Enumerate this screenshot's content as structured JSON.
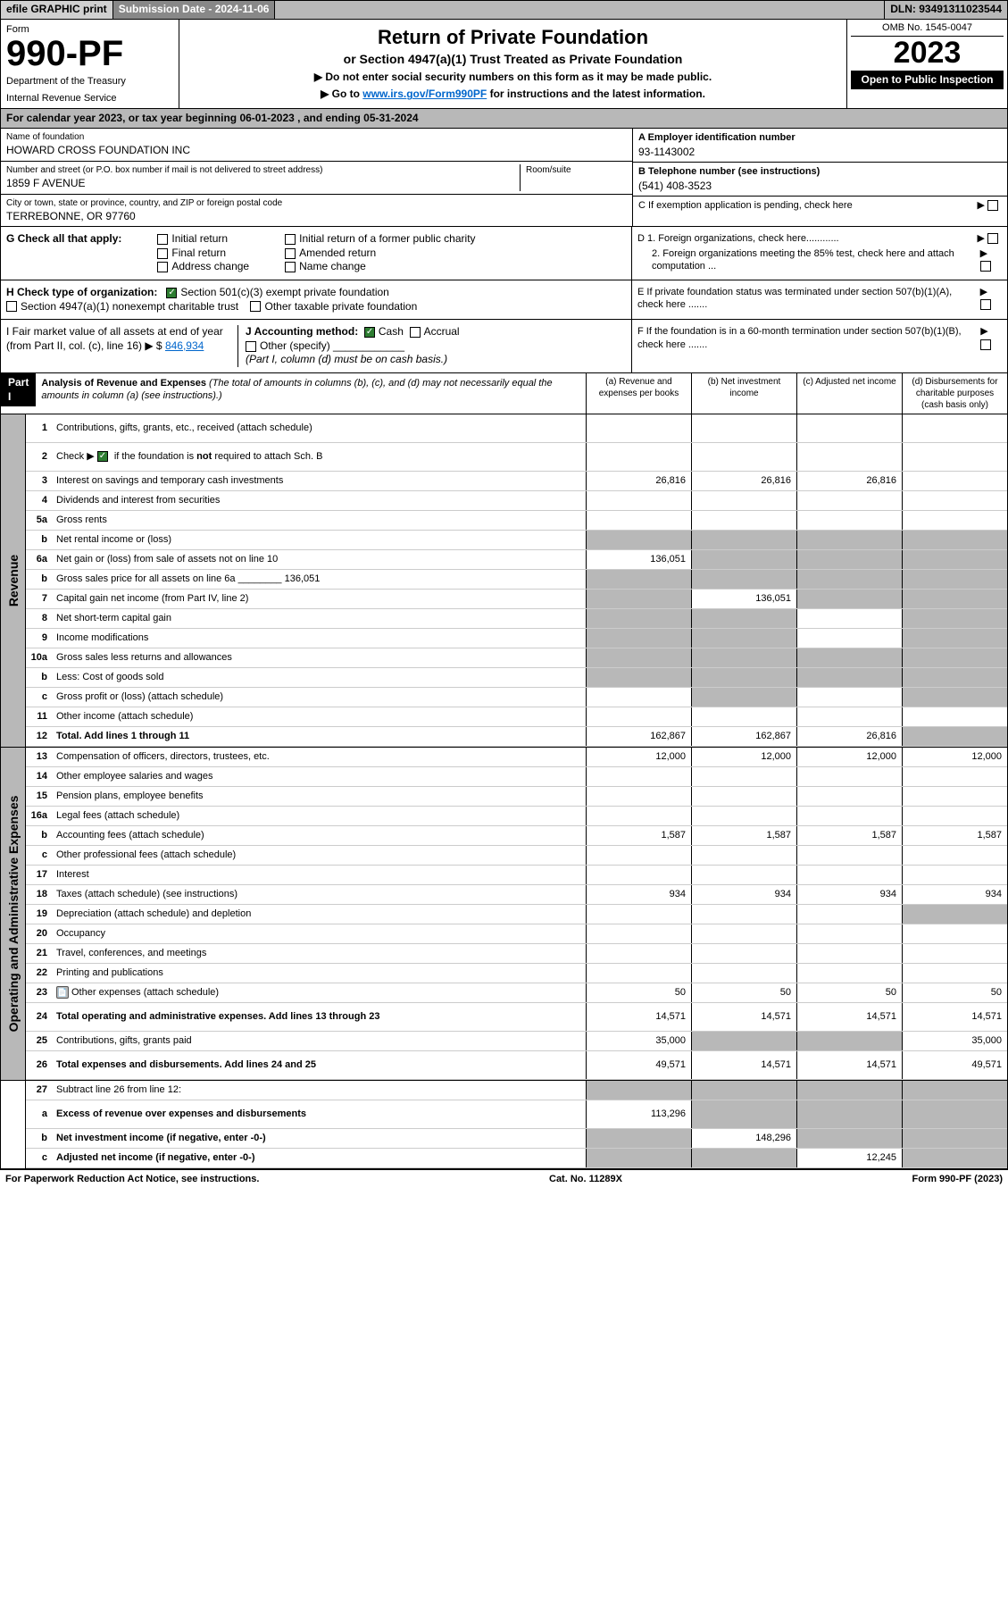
{
  "topbar": {
    "efile": "efile GRAPHIC print",
    "submission": "Submission Date - 2024-11-06",
    "dln": "DLN: 93491311023544"
  },
  "header": {
    "form_label": "Form",
    "form_number": "990-PF",
    "dept": "Department of the Treasury",
    "irs": "Internal Revenue Service",
    "title": "Return of Private Foundation",
    "subtitle": "or Section 4947(a)(1) Trust Treated as Private Foundation",
    "instr1": "▶ Do not enter social security numbers on this form as it may be made public.",
    "instr2_pre": "▶ Go to ",
    "instr2_link": "www.irs.gov/Form990PF",
    "instr2_post": " for instructions and the latest information.",
    "omb": "OMB No. 1545-0047",
    "year": "2023",
    "open": "Open to Public Inspection"
  },
  "cal_year": "For calendar year 2023, or tax year beginning 06-01-2023            , and ending 05-31-2024",
  "info": {
    "name_label": "Name of foundation",
    "name": "HOWARD CROSS FOUNDATION INC",
    "addr_label": "Number and street (or P.O. box number if mail is not delivered to street address)",
    "addr": "1859 F AVENUE",
    "room_label": "Room/suite",
    "city_label": "City or town, state or province, country, and ZIP or foreign postal code",
    "city": "TERREBONNE, OR  97760",
    "ein_label": "A Employer identification number",
    "ein": "93-1143002",
    "tel_label": "B Telephone number (see instructions)",
    "tel": "(541) 408-3523",
    "c_label": "C If exemption application is pending, check here",
    "d1": "D 1. Foreign organizations, check here............",
    "d2": "2. Foreign organizations meeting the 85% test, check here and attach computation ...",
    "e_label": "E If private foundation status was terminated under section 507(b)(1)(A), check here .......",
    "f_label": "F If the foundation is in a 60-month termination under section 507(b)(1)(B), check here ......."
  },
  "g": {
    "label": "G Check all that apply:",
    "opts": [
      "Initial return",
      "Final return",
      "Address change",
      "Initial return of a former public charity",
      "Amended return",
      "Name change"
    ]
  },
  "h": {
    "label": "H Check type of organization:",
    "opt1": "Section 501(c)(3) exempt private foundation",
    "opt2": "Section 4947(a)(1) nonexempt charitable trust",
    "opt3": "Other taxable private foundation"
  },
  "i": {
    "label": "I Fair market value of all assets at end of year (from Part II, col. (c), line 16) ▶ $",
    "val": "846,934"
  },
  "j": {
    "label": "J Accounting method:",
    "opts": [
      "Cash",
      "Accrual"
    ],
    "other": "Other (specify)",
    "note": "(Part I, column (d) must be on cash basis.)"
  },
  "part1": {
    "label": "Part I",
    "title": "Analysis of Revenue and Expenses",
    "sub": " (The total of amounts in columns (b), (c), and (d) may not necessarily equal the amounts in column (a) (see instructions).)",
    "cols": [
      "(a) Revenue and expenses per books",
      "(b) Net investment income",
      "(c) Adjusted net income",
      "(d) Disbursements for charitable purposes (cash basis only)"
    ]
  },
  "sections": {
    "revenue": "Revenue",
    "opex": "Operating and Administrative Expenses"
  },
  "rows": [
    {
      "n": "1",
      "label": "Contributions, gifts, grants, etc., received (attach schedule)",
      "a": "",
      "b": "",
      "c": "",
      "d": "",
      "sec": "rev",
      "tall": true
    },
    {
      "n": "2",
      "label": "Check ▶ ☑ if the foundation is not required to attach Sch. B",
      "a": "",
      "b": "",
      "c": "",
      "d": "",
      "sec": "rev",
      "tall": true,
      "checked": true,
      "dshade": false,
      "shaded_bcd": false
    },
    {
      "n": "3",
      "label": "Interest on savings and temporary cash investments",
      "a": "26,816",
      "b": "26,816",
      "c": "26,816",
      "d": "",
      "sec": "rev"
    },
    {
      "n": "4",
      "label": "Dividends and interest from securities",
      "a": "",
      "b": "",
      "c": "",
      "d": "",
      "sec": "rev"
    },
    {
      "n": "5a",
      "label": "Gross rents",
      "a": "",
      "b": "",
      "c": "",
      "d": "",
      "sec": "rev"
    },
    {
      "n": "b",
      "label": "Net rental income or (loss)",
      "a": "",
      "b": "",
      "c": "",
      "d": "",
      "sec": "rev",
      "shade_all": true
    },
    {
      "n": "6a",
      "label": "Net gain or (loss) from sale of assets not on line 10",
      "a": "136,051",
      "b": "",
      "c": "",
      "d": "",
      "sec": "rev",
      "shade_bcd": true
    },
    {
      "n": "b",
      "label": "Gross sales price for all assets on line 6a ________ 136,051",
      "a": "",
      "b": "",
      "c": "",
      "d": "",
      "sec": "rev",
      "shade_all": true
    },
    {
      "n": "7",
      "label": "Capital gain net income (from Part IV, line 2)",
      "a": "",
      "b": "136,051",
      "c": "",
      "d": "",
      "sec": "rev",
      "shade_a": true,
      "shade_cd": true
    },
    {
      "n": "8",
      "label": "Net short-term capital gain",
      "a": "",
      "b": "",
      "c": "",
      "d": "",
      "sec": "rev",
      "shade_ab": true,
      "shade_d": true
    },
    {
      "n": "9",
      "label": "Income modifications",
      "a": "",
      "b": "",
      "c": "",
      "d": "",
      "sec": "rev",
      "shade_ab": true,
      "shade_d": true
    },
    {
      "n": "10a",
      "label": "Gross sales less returns and allowances",
      "a": "",
      "b": "",
      "c": "",
      "d": "",
      "sec": "rev",
      "shade_all": true
    },
    {
      "n": "b",
      "label": "Less: Cost of goods sold",
      "a": "",
      "b": "",
      "c": "",
      "d": "",
      "sec": "rev",
      "shade_all": true
    },
    {
      "n": "c",
      "label": "Gross profit or (loss) (attach schedule)",
      "a": "",
      "b": "",
      "c": "",
      "d": "",
      "sec": "rev",
      "shade_b": true,
      "shade_d": true
    },
    {
      "n": "11",
      "label": "Other income (attach schedule)",
      "a": "",
      "b": "",
      "c": "",
      "d": "",
      "sec": "rev"
    },
    {
      "n": "12",
      "label": "Total. Add lines 1 through 11",
      "a": "162,867",
      "b": "162,867",
      "c": "26,816",
      "d": "",
      "sec": "rev",
      "bold": true,
      "shade_d": true
    },
    {
      "n": "13",
      "label": "Compensation of officers, directors, trustees, etc.",
      "a": "12,000",
      "b": "12,000",
      "c": "12,000",
      "d": "12,000",
      "sec": "op"
    },
    {
      "n": "14",
      "label": "Other employee salaries and wages",
      "a": "",
      "b": "",
      "c": "",
      "d": "",
      "sec": "op"
    },
    {
      "n": "15",
      "label": "Pension plans, employee benefits",
      "a": "",
      "b": "",
      "c": "",
      "d": "",
      "sec": "op"
    },
    {
      "n": "16a",
      "label": "Legal fees (attach schedule)",
      "a": "",
      "b": "",
      "c": "",
      "d": "",
      "sec": "op"
    },
    {
      "n": "b",
      "label": "Accounting fees (attach schedule)",
      "a": "1,587",
      "b": "1,587",
      "c": "1,587",
      "d": "1,587",
      "sec": "op"
    },
    {
      "n": "c",
      "label": "Other professional fees (attach schedule)",
      "a": "",
      "b": "",
      "c": "",
      "d": "",
      "sec": "op"
    },
    {
      "n": "17",
      "label": "Interest",
      "a": "",
      "b": "",
      "c": "",
      "d": "",
      "sec": "op"
    },
    {
      "n": "18",
      "label": "Taxes (attach schedule) (see instructions)",
      "a": "934",
      "b": "934",
      "c": "934",
      "d": "934",
      "sec": "op"
    },
    {
      "n": "19",
      "label": "Depreciation (attach schedule) and depletion",
      "a": "",
      "b": "",
      "c": "",
      "d": "",
      "sec": "op",
      "shade_d": true
    },
    {
      "n": "20",
      "label": "Occupancy",
      "a": "",
      "b": "",
      "c": "",
      "d": "",
      "sec": "op"
    },
    {
      "n": "21",
      "label": "Travel, conferences, and meetings",
      "a": "",
      "b": "",
      "c": "",
      "d": "",
      "sec": "op"
    },
    {
      "n": "22",
      "label": "Printing and publications",
      "a": "",
      "b": "",
      "c": "",
      "d": "",
      "sec": "op"
    },
    {
      "n": "23",
      "label": "Other expenses (attach schedule)",
      "a": "50",
      "b": "50",
      "c": "50",
      "d": "50",
      "sec": "op",
      "icon": true
    },
    {
      "n": "24",
      "label": "Total operating and administrative expenses. Add lines 13 through 23",
      "a": "14,571",
      "b": "14,571",
      "c": "14,571",
      "d": "14,571",
      "sec": "op",
      "bold": true,
      "tall": true
    },
    {
      "n": "25",
      "label": "Contributions, gifts, grants paid",
      "a": "35,000",
      "b": "",
      "c": "",
      "d": "35,000",
      "sec": "op",
      "shade_bc": true
    },
    {
      "n": "26",
      "label": "Total expenses and disbursements. Add lines 24 and 25",
      "a": "49,571",
      "b": "14,571",
      "c": "14,571",
      "d": "49,571",
      "sec": "op",
      "bold": true,
      "tall": true
    },
    {
      "n": "27",
      "label": "Subtract line 26 from line 12:",
      "a": "",
      "b": "",
      "c": "",
      "d": "",
      "sec": "none",
      "shade_all": true
    },
    {
      "n": "a",
      "label": "Excess of revenue over expenses and disbursements",
      "a": "113,296",
      "b": "",
      "c": "",
      "d": "",
      "sec": "none",
      "bold": true,
      "shade_bcd": true,
      "tall": true
    },
    {
      "n": "b",
      "label": "Net investment income (if negative, enter -0-)",
      "a": "",
      "b": "148,296",
      "c": "",
      "d": "",
      "sec": "none",
      "bold": true,
      "shade_a": true,
      "shade_cd": true
    },
    {
      "n": "c",
      "label": "Adjusted net income (if negative, enter -0-)",
      "a": "",
      "b": "",
      "c": "12,245",
      "d": "",
      "sec": "none",
      "bold": true,
      "shade_ab": true,
      "shade_d": true
    }
  ],
  "footer": {
    "left": "For Paperwork Reduction Act Notice, see instructions.",
    "mid": "Cat. No. 11289X",
    "right": "Form 990-PF (2023)"
  }
}
